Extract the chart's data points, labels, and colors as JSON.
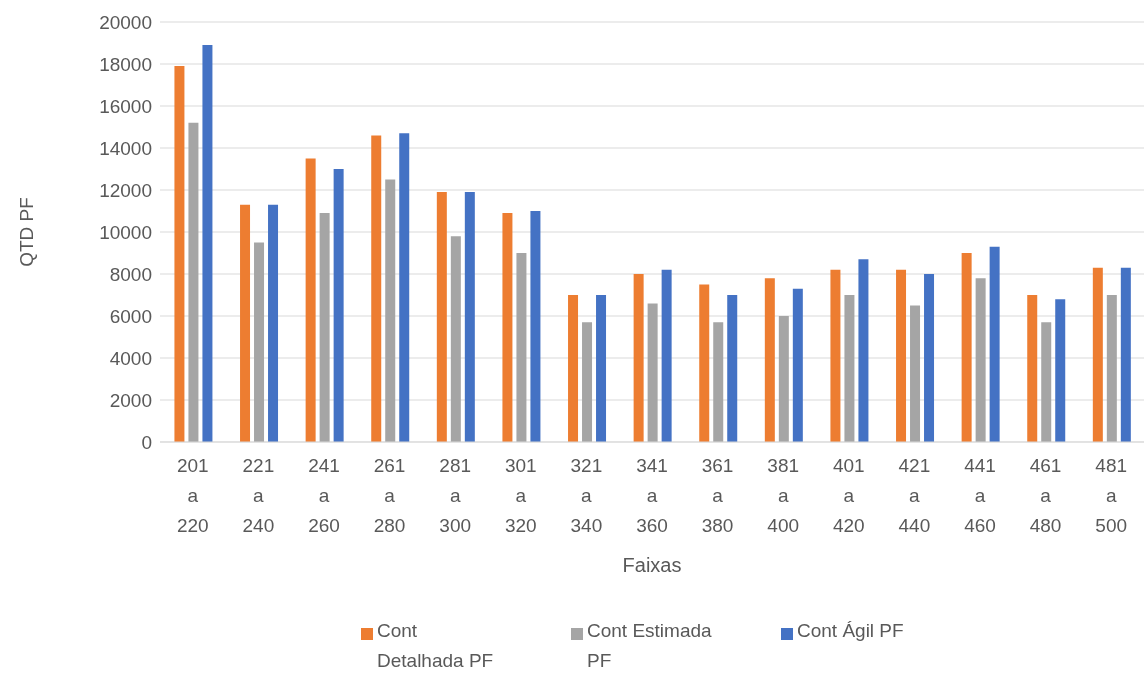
{
  "chart_data": {
    "type": "bar",
    "xlabel": "Faixas",
    "ylabel": "QTD PF",
    "categories": [
      "201 a 220",
      "221 a 240",
      "241 a 260",
      "261 a 280",
      "281 a 300",
      "301 a 320",
      "321 a 340",
      "341 a 360",
      "361 a 380",
      "381 a 400",
      "401 a 420",
      "421 a 440",
      "441 a 460",
      "461 a 480",
      "481 a 500"
    ],
    "series": [
      {
        "name": "Cont Detalhada PF",
        "color": "#ed7d31",
        "values": [
          17900,
          11300,
          13500,
          14600,
          11900,
          10900,
          7000,
          8000,
          7500,
          7800,
          8200,
          8200,
          9000,
          7000,
          8300
        ]
      },
      {
        "name": "Cont Estimada PF",
        "color": "#a5a5a5",
        "values": [
          15200,
          9500,
          10900,
          12500,
          9800,
          9000,
          5700,
          6600,
          5700,
          6000,
          7000,
          6500,
          7800,
          5700,
          7000
        ]
      },
      {
        "name": "Cont Ágil PF",
        "color": "#4472c4",
        "values": [
          18900,
          11300,
          13000,
          14700,
          11900,
          11000,
          7000,
          8200,
          7000,
          7300,
          8700,
          8000,
          9300,
          6800,
          8300
        ]
      }
    ],
    "ylim": [
      0,
      20000
    ],
    "yticks": [
      0,
      2000,
      4000,
      6000,
      8000,
      10000,
      12000,
      14000,
      16000,
      18000,
      20000
    ],
    "grid": "y",
    "legend": "bottom"
  }
}
